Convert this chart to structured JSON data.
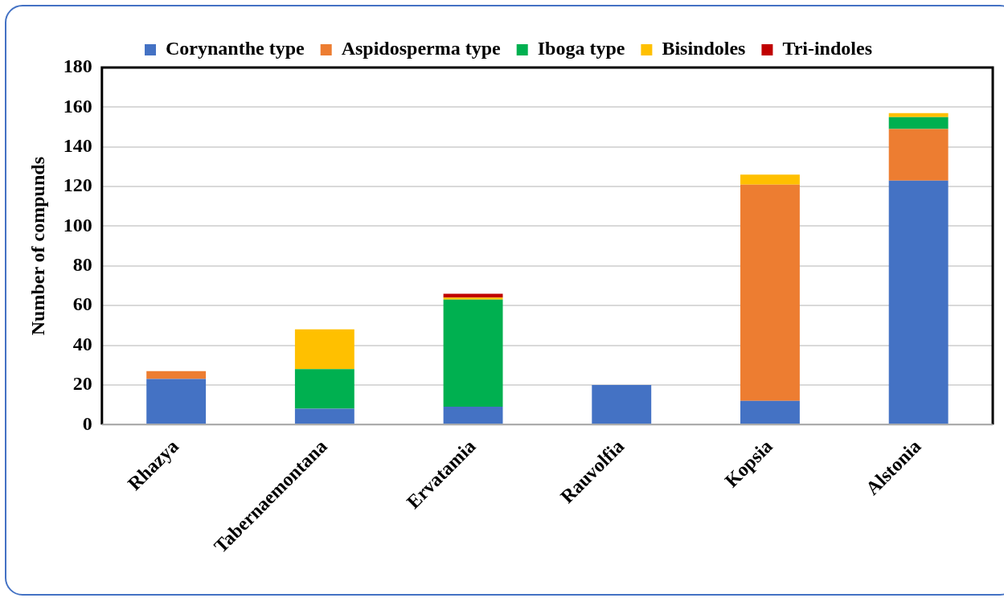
{
  "chart_data": {
    "type": "bar",
    "stacked": true,
    "ylabel": "Number of compunds",
    "categories": [
      "Rhazya",
      "Tabernaemontana",
      "Ervatamia",
      "Rauvolfia",
      "Kopsia",
      "Alstonia"
    ],
    "series": [
      {
        "name": "Corynanthe type",
        "color": "#4472c4",
        "values": [
          23,
          8,
          9,
          20,
          12,
          123
        ]
      },
      {
        "name": "Aspidosperma type",
        "color": "#ed7d31",
        "values": [
          4,
          0,
          0,
          0,
          109,
          26
        ]
      },
      {
        "name": "Iboga type",
        "color": "#00b050",
        "values": [
          0,
          20,
          54,
          0,
          0,
          6
        ]
      },
      {
        "name": "Bisindoles",
        "color": "#ffc000",
        "values": [
          0,
          20,
          1,
          0,
          5,
          2
        ]
      },
      {
        "name": "Tri-indoles",
        "color": "#c00000",
        "values": [
          0,
          0,
          2,
          0,
          0,
          0
        ]
      }
    ],
    "ylim": [
      0,
      180
    ],
    "yticks": [
      0,
      20,
      40,
      60,
      80,
      100,
      120,
      140,
      160,
      180
    ],
    "grid": "y",
    "legend": "top"
  }
}
